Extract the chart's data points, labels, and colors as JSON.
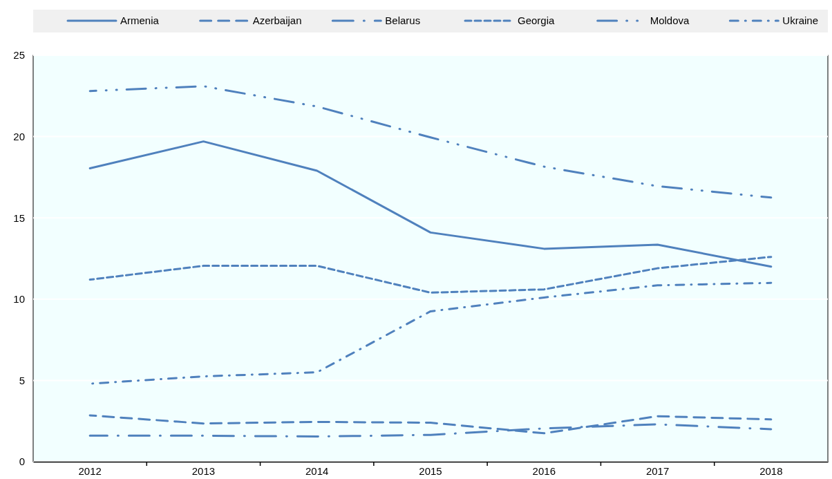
{
  "chart_data": {
    "type": "line",
    "categories": [
      "2012",
      "2013",
      "2014",
      "2015",
      "2016",
      "2017",
      "2018"
    ],
    "series": [
      {
        "name": "Armenia",
        "color": "#4f81bd",
        "line_style": "solid",
        "values": [
          18.05,
          19.7,
          17.9,
          14.1,
          13.1,
          13.35,
          12.0
        ]
      },
      {
        "name": "Azerbaijan",
        "color": "#4f81bd",
        "line_style": "dashed",
        "values": [
          2.85,
          2.35,
          2.45,
          2.4,
          1.75,
          2.8,
          2.6
        ]
      },
      {
        "name": "Belarus",
        "color": "#4f81bd",
        "line_style": "longdashdot",
        "values": [
          1.6,
          1.6,
          1.55,
          1.65,
          2.05,
          2.3,
          2.0
        ]
      },
      {
        "name": "Georgia",
        "color": "#4f81bd",
        "line_style": "shortdash",
        "values": [
          11.2,
          12.05,
          12.05,
          10.4,
          10.6,
          11.9,
          12.6
        ]
      },
      {
        "name": "Moldova",
        "color": "#4f81bd",
        "line_style": "dashdotdot",
        "values": [
          22.8,
          23.1,
          21.85,
          19.95,
          18.15,
          16.95,
          16.25
        ]
      },
      {
        "name": "Ukraine",
        "color": "#4f81bd",
        "line_style": "dashdot",
        "values": [
          4.8,
          5.25,
          5.5,
          9.25,
          10.1,
          10.85,
          11.0
        ]
      }
    ],
    "ylim": [
      0,
      25
    ],
    "yticks": [
      0,
      5,
      10,
      15,
      20,
      25
    ],
    "grid": "y",
    "legend": "top",
    "marker": "none"
  }
}
